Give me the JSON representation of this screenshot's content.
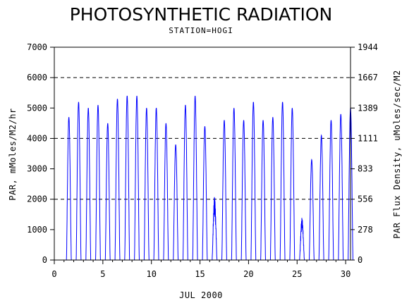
{
  "chart_data": {
    "type": "line",
    "title": "PHOTOSYNTHETIC RADIATION",
    "subtitle": "STATION=HOGI",
    "xlabel": "JUL 2000",
    "ylabel": "PAR, mMoles/M2/hr",
    "ylabel_right": "PAR Flux Density, uMoles/sec/M2",
    "xlim": [
      0,
      30.5
    ],
    "ylim": [
      0,
      7000
    ],
    "x_ticks": [
      0,
      5,
      10,
      15,
      20,
      25,
      30
    ],
    "x_tick_labels": [
      "0",
      "5",
      "10",
      "15",
      "20",
      "25",
      "30"
    ],
    "y_ticks": [
      0,
      1000,
      2000,
      3000,
      4000,
      5000,
      6000,
      7000
    ],
    "y_tick_labels": [
      "0",
      "1000",
      "2000",
      "3000",
      "4000",
      "5000",
      "6000",
      "7000"
    ],
    "y2_ticks": [
      0,
      1000,
      2000,
      3000,
      4000,
      5000,
      6000,
      7000
    ],
    "y2_tick_labels": [
      "0",
      "278",
      "556",
      "833",
      "1111",
      "1389",
      "1667",
      "1944"
    ],
    "gridlines_y": [
      2000,
      4000,
      6000
    ],
    "grid_style": "dashed",
    "line_color": "#0000ff",
    "series": [
      {
        "daily_peaks": [
          {
            "day": 1,
            "peak": 4700
          },
          {
            "day": 2,
            "peak": 5200
          },
          {
            "day": 3,
            "peak": 5000
          },
          {
            "day": 4,
            "peak": 5100
          },
          {
            "day": 5,
            "peak": 4500
          },
          {
            "day": 6,
            "peak": 5300
          },
          {
            "day": 7,
            "peak": 5400
          },
          {
            "day": 8,
            "peak": 5400
          },
          {
            "day": 9,
            "peak": 5000
          },
          {
            "day": 10,
            "peak": 5000
          },
          {
            "day": 11,
            "peak": 4500
          },
          {
            "day": 12,
            "peak": 3800
          },
          {
            "day": 13,
            "peak": 5100
          },
          {
            "day": 14,
            "peak": 5400
          },
          {
            "day": 15,
            "peak": 4400
          },
          {
            "day": 16,
            "peak": 2100
          },
          {
            "day": 17,
            "peak": 4600
          },
          {
            "day": 18,
            "peak": 5000
          },
          {
            "day": 19,
            "peak": 4600
          },
          {
            "day": 20,
            "peak": 5200
          },
          {
            "day": 21,
            "peak": 4600
          },
          {
            "day": 22,
            "peak": 4700
          },
          {
            "day": 23,
            "peak": 5200
          },
          {
            "day": 24,
            "peak": 5000
          },
          {
            "day": 25,
            "peak": 1400
          },
          {
            "day": 26,
            "peak": 3300
          },
          {
            "day": 27,
            "peak": 4100
          },
          {
            "day": 28,
            "peak": 4600
          },
          {
            "day": 29,
            "peak": 4800
          },
          {
            "day": 30,
            "peak": 5000
          }
        ]
      }
    ]
  }
}
